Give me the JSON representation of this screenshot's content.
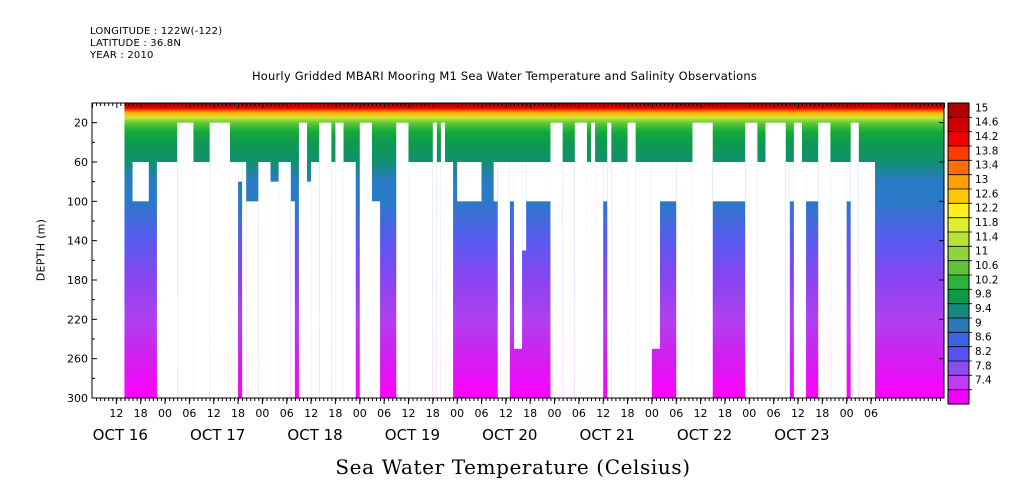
{
  "meta": {
    "longitude": "LONGITUDE : 122W(-122)",
    "latitude": "LATITUDE : 36.8N",
    "year": "YEAR : 2010"
  },
  "chart_data": {
    "type": "heatmap",
    "title": "Hourly Gridded MBARI Mooring M1 Sea Water Temperature and Salinity Observations",
    "xlabel": "Sea Water Temperature (Celsius)",
    "ylabel": "DEPTH (m)",
    "ylim": [
      300,
      0
    ],
    "y_ticks": [
      20,
      60,
      100,
      140,
      180,
      220,
      260,
      300
    ],
    "x_range_hours": [
      0,
      210
    ],
    "x_hour_ticks": [
      "12",
      "18",
      "00",
      "06",
      "12",
      "18",
      "00",
      "06",
      "12",
      "18",
      "00",
      "06",
      "12",
      "18",
      "00",
      "06",
      "12",
      "18",
      "00",
      "06",
      "12",
      "18",
      "00",
      "06",
      "12",
      "18",
      "00",
      "06",
      "12",
      "18",
      "00",
      "06"
    ],
    "x_day_labels": [
      "OCT 16",
      "OCT 17",
      "OCT 18",
      "OCT 19",
      "OCT 20",
      "OCT 21",
      "OCT 22",
      "OCT 23"
    ],
    "colorbar_labels": [
      "15",
      "14.6",
      "14.2",
      "13.8",
      "13.4",
      "13",
      "12.6",
      "12.2",
      "11.8",
      "11.4",
      "11",
      "10.6",
      "10.2",
      "9.8",
      "9.4",
      "9",
      "8.6",
      "8.2",
      "7.8",
      "7.4"
    ],
    "temperature_profile": {
      "depth": [
        0,
        5,
        10,
        15,
        20,
        25,
        30,
        40,
        60,
        80,
        100,
        140,
        180,
        220,
        260,
        300
      ],
      "value": [
        15,
        14.5,
        13.6,
        12.6,
        11.8,
        11.3,
        11.0,
        10.6,
        10.2,
        9.7,
        9.4,
        9.0,
        8.6,
        8.2,
        7.8,
        7.4
      ]
    },
    "data_start_hour": 8,
    "color_scale": [
      "#ff00ff",
      "#d21ef0",
      "#b040f0",
      "#8844f0",
      "#5a5af0",
      "#3c6ae6",
      "#2a7ac8",
      "#1a8ca0",
      "#109070",
      "#0e9a50",
      "#12a83a",
      "#34b838",
      "#66c83a",
      "#98d83a",
      "#c8e83a",
      "#f0f03a",
      "#f8d020",
      "#ffb000",
      "#ff8000",
      "#ff4000",
      "#e00000",
      "#b00000"
    ],
    "colorbar_colors": [
      "#b00000",
      "#d00000",
      "#f00000",
      "#ff3c00",
      "#ff7000",
      "#ffa000",
      "#ffc800",
      "#ffee20",
      "#ddef30",
      "#b8e43a",
      "#90d43a",
      "#60c23a",
      "#2eb23c",
      "#0c9a4a",
      "#168a7c",
      "#2c78b8",
      "#3c62e4",
      "#5852f2",
      "#8c4af2",
      "#c03cf2",
      "#f000ff"
    ],
    "gaps": [
      {
        "x0": 10,
        "x1": 14,
        "d0": 60,
        "d1": 100
      },
      {
        "x0": 16,
        "x1": 21,
        "d0": 60,
        "d1": 300
      },
      {
        "x0": 21,
        "x1": 25,
        "d0": 20,
        "d1": 300
      },
      {
        "x0": 25,
        "x1": 29,
        "d0": 60,
        "d1": 300
      },
      {
        "x0": 29,
        "x1": 34,
        "d0": 20,
        "d1": 300
      },
      {
        "x0": 34,
        "x1": 36,
        "d0": 60,
        "d1": 300
      },
      {
        "x0": 36,
        "x1": 37,
        "d0": 60,
        "d1": 80
      },
      {
        "x0": 37,
        "x1": 38,
        "d0": 60,
        "d1": 300
      },
      {
        "x0": 38,
        "x1": 41,
        "d0": 100,
        "d1": 300
      },
      {
        "x0": 41,
        "x1": 44,
        "d0": 60,
        "d1": 300
      },
      {
        "x0": 44,
        "x1": 46,
        "d0": 80,
        "d1": 300
      },
      {
        "x0": 46,
        "x1": 49,
        "d0": 60,
        "d1": 300
      },
      {
        "x0": 49,
        "x1": 50,
        "d0": 100,
        "d1": 300
      },
      {
        "x0": 51,
        "x1": 53,
        "d0": 20,
        "d1": 300
      },
      {
        "x0": 53,
        "x1": 54,
        "d0": 80,
        "d1": 300
      },
      {
        "x0": 54,
        "x1": 56,
        "d0": 60,
        "d1": 300
      },
      {
        "x0": 56,
        "x1": 59,
        "d0": 20,
        "d1": 300
      },
      {
        "x0": 59,
        "x1": 60,
        "d0": 60,
        "d1": 300
      },
      {
        "x0": 60,
        "x1": 62,
        "d0": 20,
        "d1": 300
      },
      {
        "x0": 62,
        "x1": 65,
        "d0": 60,
        "d1": 300
      },
      {
        "x0": 66,
        "x1": 69,
        "d0": 20,
        "d1": 300
      },
      {
        "x0": 69,
        "x1": 71,
        "d0": 100,
        "d1": 300
      },
      {
        "x0": 75,
        "x1": 78,
        "d0": 20,
        "d1": 300
      },
      {
        "x0": 78,
        "x1": 84,
        "d0": 60,
        "d1": 300
      },
      {
        "x0": 84,
        "x1": 85,
        "d0": 20,
        "d1": 300
      },
      {
        "x0": 85,
        "x1": 86,
        "d0": 60,
        "d1": 300
      },
      {
        "x0": 86,
        "x1": 87,
        "d0": 20,
        "d1": 300
      },
      {
        "x0": 87,
        "x1": 89,
        "d0": 60,
        "d1": 300
      },
      {
        "x0": 90,
        "x1": 96,
        "d0": 60,
        "d1": 100
      },
      {
        "x0": 99,
        "x1": 100,
        "d0": 60,
        "d1": 100
      },
      {
        "x0": 100,
        "x1": 103,
        "d0": 60,
        "d1": 300
      },
      {
        "x0": 103,
        "x1": 104,
        "d0": 60,
        "d1": 100
      },
      {
        "x0": 104,
        "x1": 106,
        "d0": 60,
        "d1": 250
      },
      {
        "x0": 106,
        "x1": 107,
        "d0": 60,
        "d1": 150
      },
      {
        "x0": 107,
        "x1": 113,
        "d0": 60,
        "d1": 100
      },
      {
        "x0": 113,
        "x1": 116,
        "d0": 20,
        "d1": 300
      },
      {
        "x0": 116,
        "x1": 119,
        "d0": 60,
        "d1": 300
      },
      {
        "x0": 119,
        "x1": 122,
        "d0": 20,
        "d1": 300
      },
      {
        "x0": 122,
        "x1": 123,
        "d0": 60,
        "d1": 300
      },
      {
        "x0": 123,
        "x1": 124,
        "d0": 20,
        "d1": 300
      },
      {
        "x0": 124,
        "x1": 126,
        "d0": 60,
        "d1": 300
      },
      {
        "x0": 126,
        "x1": 127,
        "d0": 60,
        "d1": 100
      },
      {
        "x0": 127,
        "x1": 128,
        "d0": 20,
        "d1": 300
      },
      {
        "x0": 128,
        "x1": 132,
        "d0": 60,
        "d1": 300
      },
      {
        "x0": 132,
        "x1": 134,
        "d0": 20,
        "d1": 300
      },
      {
        "x0": 134,
        "x1": 138,
        "d0": 60,
        "d1": 300
      },
      {
        "x0": 138,
        "x1": 140,
        "d0": 60,
        "d1": 250
      },
      {
        "x0": 140,
        "x1": 144,
        "d0": 60,
        "d1": 100
      },
      {
        "x0": 144,
        "x1": 148,
        "d0": 60,
        "d1": 300
      },
      {
        "x0": 148,
        "x1": 153,
        "d0": 20,
        "d1": 300
      },
      {
        "x0": 153,
        "x1": 161,
        "d0": 60,
        "d1": 100
      },
      {
        "x0": 161,
        "x1": 164,
        "d0": 20,
        "d1": 300
      },
      {
        "x0": 164,
        "x1": 166,
        "d0": 60,
        "d1": 300
      },
      {
        "x0": 166,
        "x1": 171,
        "d0": 20,
        "d1": 300
      },
      {
        "x0": 171,
        "x1": 172,
        "d0": 60,
        "d1": 300
      },
      {
        "x0": 172,
        "x1": 173,
        "d0": 60,
        "d1": 100
      },
      {
        "x0": 173,
        "x1": 175,
        "d0": 20,
        "d1": 300
      },
      {
        "x0": 175,
        "x1": 176,
        "d0": 60,
        "d1": 300
      },
      {
        "x0": 176,
        "x1": 179,
        "d0": 60,
        "d1": 100
      },
      {
        "x0": 179,
        "x1": 182,
        "d0": 20,
        "d1": 300
      },
      {
        "x0": 182,
        "x1": 186,
        "d0": 60,
        "d1": 300
      },
      {
        "x0": 186,
        "x1": 187,
        "d0": 60,
        "d1": 100
      },
      {
        "x0": 187,
        "x1": 189,
        "d0": 20,
        "d1": 300
      },
      {
        "x0": 189,
        "x1": 193,
        "d0": 60,
        "d1": 300
      }
    ]
  }
}
